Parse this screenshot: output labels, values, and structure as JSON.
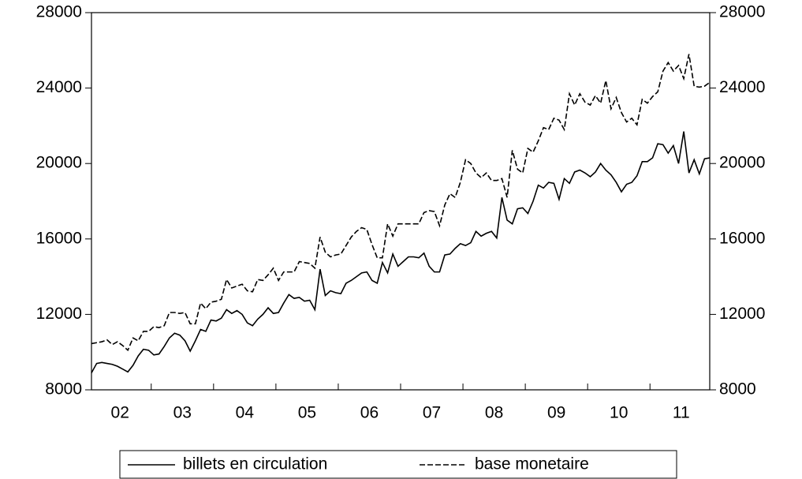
{
  "chart_data": {
    "type": "line",
    "categories": [
      null,
      null,
      null,
      null,
      null,
      null,
      "02",
      null,
      null,
      null,
      null,
      null,
      null,
      null,
      null,
      null,
      null,
      null,
      "03",
      null,
      null,
      null,
      null,
      null,
      null,
      null,
      null,
      null,
      null,
      null,
      "04",
      null,
      null,
      null,
      null,
      null,
      null,
      null,
      null,
      null,
      null,
      null,
      "05",
      null,
      null,
      null,
      null,
      null,
      null,
      null,
      null,
      null,
      null,
      null,
      "06",
      null,
      null,
      null,
      null,
      null,
      null,
      null,
      null,
      null,
      null,
      null,
      "07",
      null,
      null,
      null,
      null,
      null,
      null,
      null,
      null,
      null,
      null,
      null,
      "08",
      null,
      null,
      null,
      null,
      null,
      null,
      null,
      null,
      null,
      null,
      null,
      "09",
      null,
      null,
      null,
      null,
      null,
      null,
      null,
      null,
      null,
      null,
      null,
      "10",
      null,
      null,
      null,
      null,
      null,
      null,
      null,
      null,
      null,
      null,
      null,
      "11",
      null,
      null,
      null,
      null,
      null
    ],
    "series": [
      {
        "name": "billets en circulation",
        "color": "#000000",
        "dash": false,
        "values": [
          8900,
          9400,
          9450,
          9400,
          9350,
          9250,
          9100,
          8950,
          9300,
          9800,
          10150,
          10100,
          9850,
          9900,
          10300,
          10750,
          11000,
          10900,
          10600,
          10050,
          10600,
          11200,
          11100,
          11700,
          11650,
          11800,
          12250,
          12050,
          12200,
          12000,
          11550,
          11400,
          11750,
          12000,
          12350,
          12050,
          12100,
          12600,
          13050,
          12850,
          12900,
          12700,
          12750,
          12250,
          14400,
          13000,
          13250,
          13150,
          13100,
          13650,
          13800,
          14000,
          14200,
          14250,
          13800,
          13650,
          14750,
          14200,
          15200,
          14550,
          14800,
          15050,
          15050,
          15000,
          15250,
          14550,
          14250,
          14250,
          15150,
          15200,
          15500,
          15750,
          15650,
          15800,
          16400,
          16150,
          16300,
          16400,
          16050,
          18200,
          17000,
          16800,
          17600,
          17650,
          17350,
          18000,
          18850,
          18700,
          19000,
          18950,
          18100,
          19200,
          18950,
          19550,
          19650,
          19500,
          19300,
          19550,
          20000,
          19650,
          19400,
          19000,
          18500,
          18900,
          19000,
          19350,
          20100,
          20100,
          20300,
          21050,
          21000,
          20550,
          20950,
          20000,
          21700,
          19500,
          20200,
          19450,
          20250,
          20300
        ]
      },
      {
        "name": "base monetaire",
        "color": "#000000",
        "dash": true,
        "values": [
          10450,
          10500,
          10550,
          10650,
          10400,
          10550,
          10350,
          10100,
          10750,
          10600,
          11100,
          11100,
          11350,
          11300,
          11400,
          12100,
          12100,
          12050,
          12100,
          11500,
          11500,
          12600,
          12300,
          12650,
          12700,
          12800,
          13850,
          13400,
          13500,
          13600,
          13250,
          13200,
          13850,
          13800,
          14100,
          14450,
          13800,
          14250,
          14250,
          14250,
          14800,
          14750,
          14700,
          14450,
          16100,
          15300,
          15050,
          15150,
          15200,
          15650,
          16100,
          16400,
          16600,
          16500,
          15700,
          15000,
          15000,
          16800,
          16150,
          16800,
          16800,
          16800,
          16800,
          16800,
          17400,
          17500,
          17450,
          16700,
          17800,
          18400,
          18200,
          19000,
          20200,
          20000,
          19500,
          19250,
          19500,
          19100,
          19100,
          19200,
          18200,
          20700,
          19700,
          19500,
          20800,
          20600,
          21200,
          21900,
          21800,
          22400,
          22300,
          21800,
          23700,
          23100,
          23700,
          23250,
          23100,
          23600,
          23200,
          24400,
          22900,
          23500,
          22700,
          22200,
          22400,
          22050,
          23400,
          23200,
          23550,
          23800,
          24900,
          25350,
          24900,
          25200,
          24500,
          25800,
          24100,
          24050,
          24100,
          24300
        ]
      }
    ],
    "ylim": [
      8000,
      28000
    ],
    "yticks": [
      8000,
      12000,
      16000,
      20000,
      24000,
      28000
    ],
    "y2lim": [
      8000,
      28000
    ],
    "y2ticks": [
      8000,
      12000,
      16000,
      20000,
      24000,
      28000
    ]
  }
}
